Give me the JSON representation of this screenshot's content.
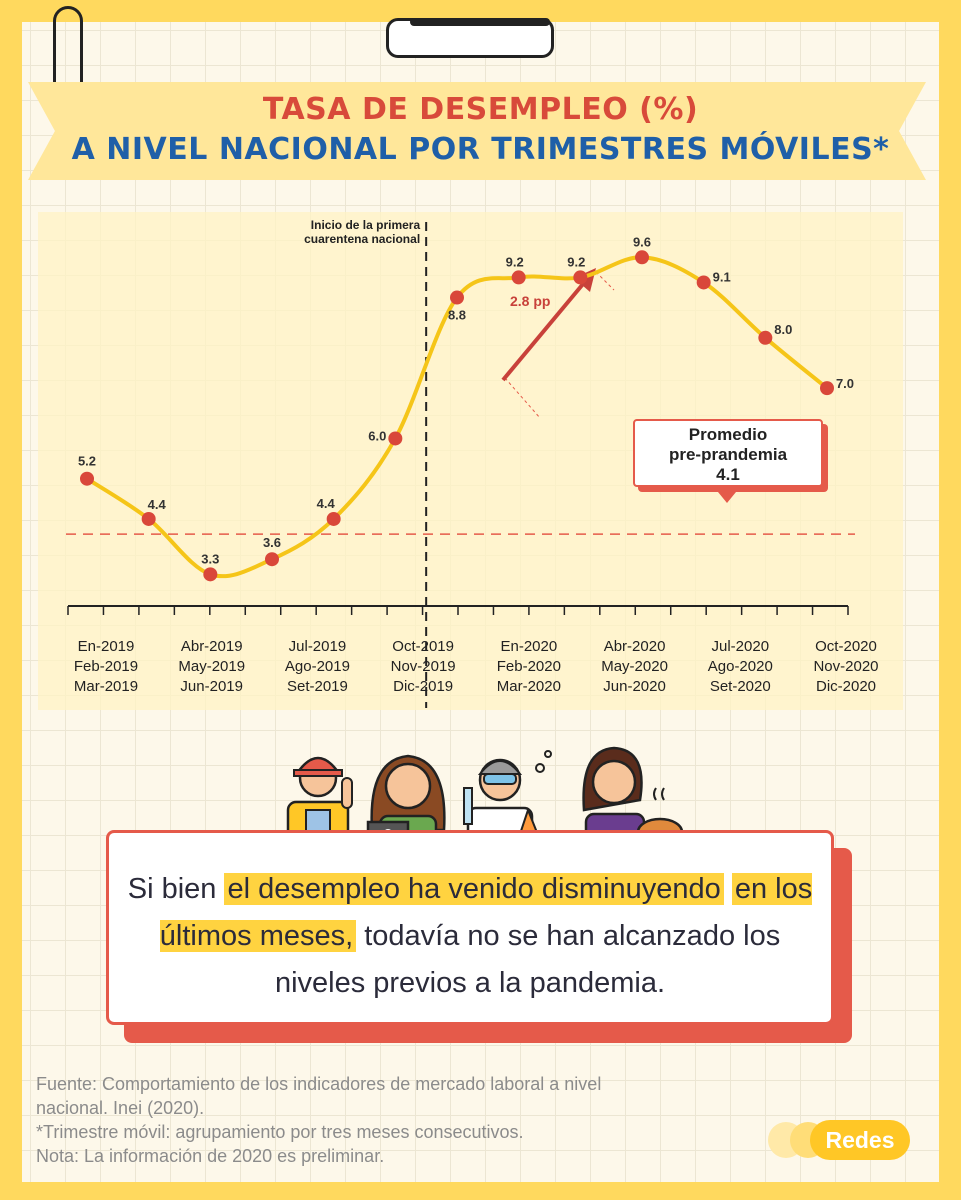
{
  "title": {
    "line1": "TASA DE DESEMPLEO (%)",
    "line2": "A NIVEL NACIONAL POR TRIMESTRES MÓVILES*"
  },
  "chart_data": {
    "type": "line",
    "title": "TASA DE DESEMPLEO (%) A NIVEL NACIONAL POR TRIMESTRES MÓVILES*",
    "ylim": [
      1.2,
      10.5
    ],
    "grid": true,
    "series": [
      {
        "color": "#f5c518",
        "points": [
          {
            "x": "En-2019 Feb-2019 Mar-2019",
            "y": 5.2,
            "label": "5.2"
          },
          {
            "x": "Mar-2019",
            "y": 4.4,
            "label": "4.4"
          },
          {
            "x": "Abr-2019 May-2019 Jun-2019",
            "y": 3.3,
            "label": "3.3"
          },
          {
            "x": "Set-2019",
            "y": 3.6,
            "label": "3.6"
          },
          {
            "x": "Nov-2019",
            "y": 4.4,
            "label": "4.4"
          },
          {
            "x": "Ene-2020",
            "y": 6.0,
            "label": "6.0"
          },
          {
            "x": "Abr-2020 May-2020 Jun-2020",
            "y": 8.8,
            "label": "8.8"
          },
          {
            "x": "May-2020",
            "y": 9.2,
            "label": "9.2"
          },
          {
            "x": "Jun-2020",
            "y": 9.2,
            "label": "9.2"
          },
          {
            "x": "Jul-2020 Ago-2020 Set-2020",
            "y": 9.6,
            "label": "9.6"
          },
          {
            "x": "Ago-2020",
            "y": 9.1,
            "label": "9.1"
          },
          {
            "x": "Set-2020",
            "y": 8.0,
            "label": "8.0"
          },
          {
            "x": "Oct-2020 Nov-2020 Dic-2020",
            "y": 7.0,
            "label": "7.0"
          }
        ]
      }
    ],
    "tick_labels": [
      [
        "En-2019",
        "Feb-2019",
        "Mar-2019"
      ],
      [
        "Abr-2019",
        "May-2019",
        "Jun-2019"
      ],
      [
        "Jul-2019",
        "Ago-2019",
        "Set-2019"
      ],
      [
        "Oct-2019",
        "Nov-2019",
        "Dic-2019"
      ],
      [
        "En-2020",
        "Feb-2020",
        "Mar-2020"
      ],
      [
        "Abr-2020",
        "May-2020",
        "Jun-2020"
      ],
      [
        "Jul-2020",
        "Ago-2020",
        "Set-2020"
      ],
      [
        "Oct-2020",
        "Nov-2020",
        "Dic-2020"
      ]
    ],
    "reference_line": {
      "value": 4.1,
      "label_lines": [
        "Promedio",
        "pre-prandemia",
        "4.1"
      ],
      "color": "#e55a4a"
    },
    "annotations": {
      "lockdown": [
        "Inicio de la primera",
        "cuarentena nacional"
      ],
      "jump": "2.8 pp"
    }
  },
  "message": {
    "pre": "Si bien ",
    "hl1": "el desempleo ha venido disminuyendo",
    "hl2": "en los últimos meses,",
    "post": " todavía no se han alcanzado los niveles previos a la pandemia."
  },
  "footer": {
    "line1": "Fuente: Comportamiento de los indicadores de mercado laboral a nivel",
    "line2": "nacional. Inei (2020).",
    "line3": "*Trimestre móvil: agrupamiento por tres meses consecutivos.",
    "line4": "Nota: La información de 2020 es preliminar."
  },
  "brand": {
    "name": "Redes"
  }
}
